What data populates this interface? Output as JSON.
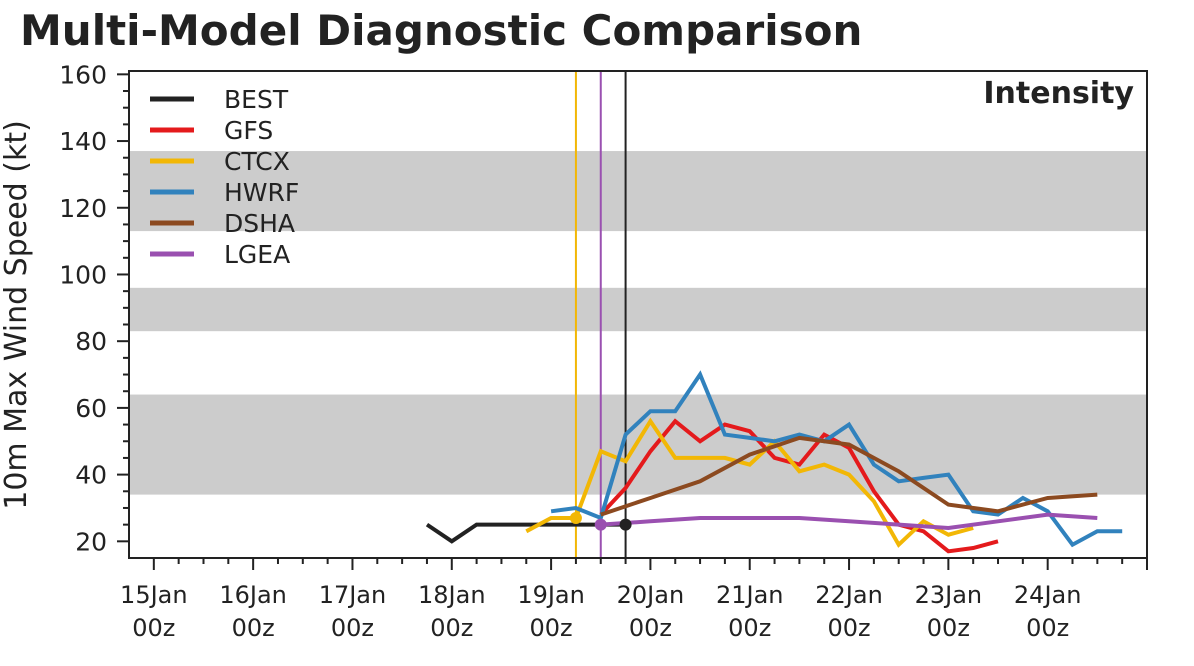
{
  "chart_data": {
    "type": "line",
    "title": "Multi-Model Diagnostic Comparison",
    "panel_label": "Intensity",
    "ylabel": "10m Max Wind Speed (kt)",
    "xlabel": "",
    "x_unit": "hours since 15Jan 00z",
    "xlim": [
      -6,
      240
    ],
    "ylim": [
      15,
      161
    ],
    "yticks": [
      20,
      40,
      60,
      80,
      100,
      120,
      140,
      160
    ],
    "xticks": [
      {
        "x": 0,
        "date": "15Jan",
        "time": "00z"
      },
      {
        "x": 24,
        "date": "16Jan",
        "time": "00z"
      },
      {
        "x": 48,
        "date": "17Jan",
        "time": "00z"
      },
      {
        "x": 72,
        "date": "18Jan",
        "time": "00z"
      },
      {
        "x": 96,
        "date": "19Jan",
        "time": "00z"
      },
      {
        "x": 120,
        "date": "20Jan",
        "time": "00z"
      },
      {
        "x": 144,
        "date": "21Jan",
        "time": "00z"
      },
      {
        "x": 168,
        "date": "22Jan",
        "time": "00z"
      },
      {
        "x": 192,
        "date": "23Jan",
        "time": "00z"
      },
      {
        "x": 216,
        "date": "24Jan",
        "time": "00z"
      }
    ],
    "shaded_bands": [
      [
        34,
        64
      ],
      [
        83,
        96
      ],
      [
        113,
        137
      ]
    ],
    "grid": false,
    "legend_position": "top-left",
    "init_lines": [
      {
        "x": 102,
        "color": "#f2b705"
      },
      {
        "x": 108,
        "color": "#9a50b0"
      },
      {
        "x": 114,
        "color": "#222222"
      }
    ],
    "init_markers": [
      {
        "x": 102,
        "y": 27,
        "color": "#f2b705"
      },
      {
        "x": 108,
        "y": 25,
        "color": "#9a50b0"
      },
      {
        "x": 114,
        "y": 25,
        "color": "#222222"
      }
    ],
    "series": [
      {
        "name": "BEST",
        "color": "#222222",
        "x": [
          66,
          72,
          78,
          84,
          90,
          96,
          102,
          108,
          114
        ],
        "y": [
          25,
          20,
          25,
          25,
          25,
          25,
          25,
          25,
          25
        ]
      },
      {
        "name": "GFS",
        "color": "#e41a1c",
        "x": [
          108,
          114,
          120,
          126,
          132,
          138,
          144,
          150,
          156,
          162,
          168,
          174,
          180,
          186,
          192,
          198,
          204
        ],
        "y": [
          28,
          36,
          47,
          56,
          50,
          55,
          53,
          45,
          43,
          52,
          48,
          35,
          25,
          23,
          17,
          18,
          20
        ]
      },
      {
        "name": "CTCX",
        "color": "#f2b705",
        "x": [
          90,
          96,
          102,
          108,
          114,
          120,
          126,
          132,
          138,
          144,
          150,
          156,
          162,
          168,
          174,
          180,
          186,
          192,
          198
        ],
        "y": [
          23,
          27,
          27,
          47,
          44,
          56,
          45,
          45,
          45,
          43,
          50,
          41,
          43,
          40,
          32,
          19,
          26,
          22,
          24
        ]
      },
      {
        "name": "HWRF",
        "color": "#3182bd",
        "x": [
          96,
          102,
          108,
          114,
          120,
          126,
          132,
          138,
          144,
          150,
          156,
          162,
          168,
          174,
          180,
          186,
          192,
          198,
          204,
          210,
          216,
          222,
          228,
          234
        ],
        "y": [
          29,
          30,
          27,
          52,
          59,
          59,
          70,
          52,
          51,
          50,
          52,
          50,
          55,
          43,
          38,
          39,
          40,
          29,
          28,
          33,
          29,
          19,
          23,
          23
        ]
      },
      {
        "name": "DSHA",
        "color": "#8c4a20",
        "x": [
          108,
          120,
          132,
          144,
          156,
          168,
          180,
          192,
          204,
          216,
          228
        ],
        "y": [
          28,
          33,
          38,
          46,
          51,
          49,
          41,
          31,
          29,
          33,
          34
        ]
      },
      {
        "name": "LGEA",
        "color": "#9a50b0",
        "x": [
          108,
          120,
          132,
          144,
          156,
          168,
          180,
          192,
          204,
          216,
          228
        ],
        "y": [
          25,
          26,
          27,
          27,
          27,
          26,
          25,
          24,
          26,
          28,
          27
        ]
      }
    ]
  }
}
